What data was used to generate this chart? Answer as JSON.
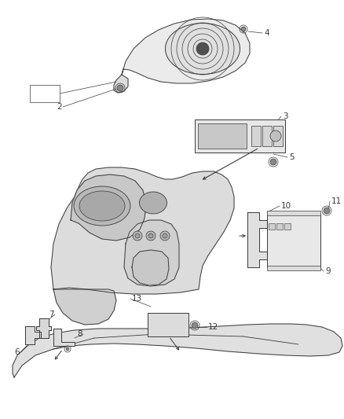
{
  "bg_color": "#ffffff",
  "line_color": "#3a3a3a",
  "fig_width": 4.38,
  "fig_height": 5.33,
  "dpi": 100,
  "label_fontsize": 7.5,
  "lw": 0.7
}
